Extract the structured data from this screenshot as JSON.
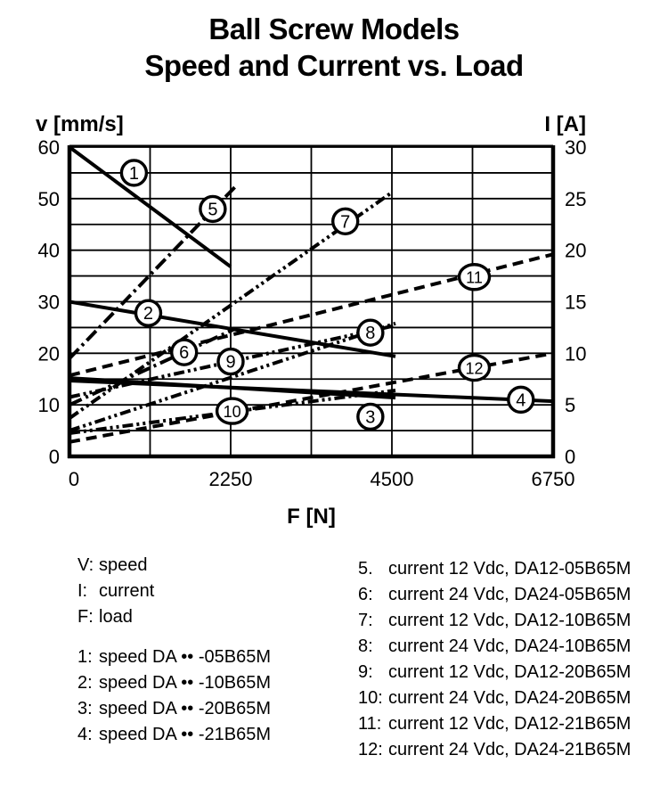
{
  "title": {
    "line1": "Ball Screw Models",
    "line2": "Speed and Current vs. Load"
  },
  "colors": {
    "ink": "#000000",
    "background": "#ffffff"
  },
  "chart_data": {
    "type": "line",
    "title": "Ball Screw Models — Speed and Current vs. Load",
    "grid": true,
    "x_axis": {
      "label": "F [N]",
      "min": 0,
      "max": 6750,
      "major_ticks": [
        0,
        2250,
        4500,
        6750
      ],
      "minor_tick_step": 1125
    },
    "y_left_axis": {
      "label": "v [mm/s]",
      "min": 0,
      "max": 60,
      "major_ticks": [
        0,
        10,
        20,
        30,
        40,
        50,
        60
      ],
      "grid_step": 5
    },
    "y_right_axis": {
      "label": "I [A]",
      "min": 0,
      "max": 30,
      "major_ticks": [
        0,
        5,
        10,
        15,
        20,
        25,
        30
      ]
    },
    "series": [
      {
        "id": "1",
        "name": "speed DA••-05B65M",
        "quantity": "speed",
        "axis": "left",
        "unit": "mm/s",
        "line_style": "solid",
        "points": [
          [
            0,
            60
          ],
          [
            2250,
            36.8
          ]
        ],
        "label_pos": [
          900,
          55
        ]
      },
      {
        "id": "2",
        "name": "speed DA••-10B65M",
        "quantity": "speed",
        "axis": "left",
        "unit": "mm/s",
        "line_style": "solid",
        "points": [
          [
            0,
            30
          ],
          [
            4550,
            19.4
          ]
        ],
        "label_pos": [
          1100,
          27.8
        ]
      },
      {
        "id": "3",
        "name": "speed DA••-20B65M",
        "quantity": "speed",
        "axis": "left",
        "unit": "mm/s",
        "line_style": "solid",
        "points": [
          [
            0,
            15.2
          ],
          [
            4550,
            11.4
          ]
        ],
        "label_pos": [
          4200,
          7.7
        ]
      },
      {
        "id": "4",
        "name": "speed DA••-21B65M",
        "quantity": "speed",
        "axis": "left",
        "unit": "mm/s",
        "line_style": "solid",
        "points": [
          [
            0,
            14.7
          ],
          [
            6750,
            10.7
          ]
        ],
        "label_pos": [
          6300,
          11
        ]
      },
      {
        "id": "5",
        "name": "current 12 Vdc, DA12-05B65M",
        "quantity": "current",
        "axis": "right",
        "unit": "A",
        "line_style": "dash-dot",
        "points": [
          [
            0,
            9.5
          ],
          [
            2320,
            26.2
          ]
        ],
        "label_pos": [
          2000,
          24
        ]
      },
      {
        "id": "6",
        "name": "current 24 Vdc, DA24-05B65M",
        "quantity": "current",
        "axis": "right",
        "unit": "A",
        "line_style": "dash-dot",
        "points": [
          [
            0,
            5
          ],
          [
            2320,
            12.4
          ]
        ],
        "label_pos": [
          1600,
          10.1
        ]
      },
      {
        "id": "7",
        "name": "current 12 Vdc, DA12-10B65M",
        "quantity": "current",
        "axis": "right",
        "unit": "A",
        "line_style": "dash-dot-dot",
        "points": [
          [
            0,
            3.7
          ],
          [
            4480,
            25.5
          ]
        ],
        "label_pos": [
          3850,
          22.8
        ]
      },
      {
        "id": "8",
        "name": "current 24 Vdc, DA24-10B65M",
        "quantity": "current",
        "axis": "right",
        "unit": "A",
        "line_style": "dash-dot-dot",
        "points": [
          [
            0,
            2.5
          ],
          [
            4550,
            12.9
          ]
        ],
        "label_pos": [
          4200,
          12
        ]
      },
      {
        "id": "9",
        "name": "current 12 Vdc, DA12-20B65M",
        "quantity": "current",
        "axis": "right",
        "unit": "A",
        "line_style": "dash-dot-dot",
        "points": [
          [
            0,
            5.75
          ],
          [
            4550,
            12.7
          ]
        ],
        "label_pos": [
          2250,
          9.2
        ]
      },
      {
        "id": "10",
        "name": "current 24 Vdc, DA24-20B65M",
        "quantity": "current",
        "axis": "right",
        "unit": "A",
        "line_style": "dash-dot-dot",
        "points": [
          [
            0,
            2.25
          ],
          [
            4550,
            6.4
          ]
        ],
        "label_pos": [
          2270,
          4.4
        ]
      },
      {
        "id": "11",
        "name": "current 12 Vdc, DA12-21B65M",
        "quantity": "current",
        "axis": "right",
        "unit": "A",
        "line_style": "dashed",
        "points": [
          [
            0,
            7.85
          ],
          [
            6750,
            19.6
          ]
        ],
        "label_pos": [
          5650,
          17.4
        ]
      },
      {
        "id": "12",
        "name": "current 24 Vdc, DA24-21B65M",
        "quantity": "current",
        "axis": "right",
        "unit": "A",
        "line_style": "dashed",
        "points": [
          [
            0,
            1.4
          ],
          [
            6750,
            10
          ]
        ],
        "label_pos": [
          5650,
          8.6
        ]
      }
    ]
  },
  "legend": {
    "definitions": [
      {
        "num": "V:",
        "text": "speed"
      },
      {
        "num": "I:",
        "text": "current"
      },
      {
        "num": "F:",
        "text": "load"
      }
    ],
    "speed_items": [
      {
        "num": "1:",
        "text": "speed DA •• -05B65M"
      },
      {
        "num": "2:",
        "text": "speed DA •• -10B65M"
      },
      {
        "num": "3:",
        "text": "speed DA •• -20B65M"
      },
      {
        "num": "4:",
        "text": "speed DA •• -21B65M"
      }
    ],
    "current_items": [
      {
        "num": "5.",
        "text": "current 12 Vdc, DA12-05B65M"
      },
      {
        "num": "6:",
        "text": "current 24 Vdc, DA24-05B65M"
      },
      {
        "num": "7:",
        "text": "current 12 Vdc, DA12-10B65M"
      },
      {
        "num": "8:",
        "text": "current 24 Vdc, DA24-10B65M"
      },
      {
        "num": "9:",
        "text": "current 12 Vdc, DA12-20B65M"
      },
      {
        "num": "10:",
        "text": "current 24 Vdc, DA24-20B65M"
      },
      {
        "num": "11:",
        "text": "current 12 Vdc, DA12-21B65M"
      },
      {
        "num": "12:",
        "text": "current 24 Vdc, DA24-21B65M"
      }
    ]
  }
}
